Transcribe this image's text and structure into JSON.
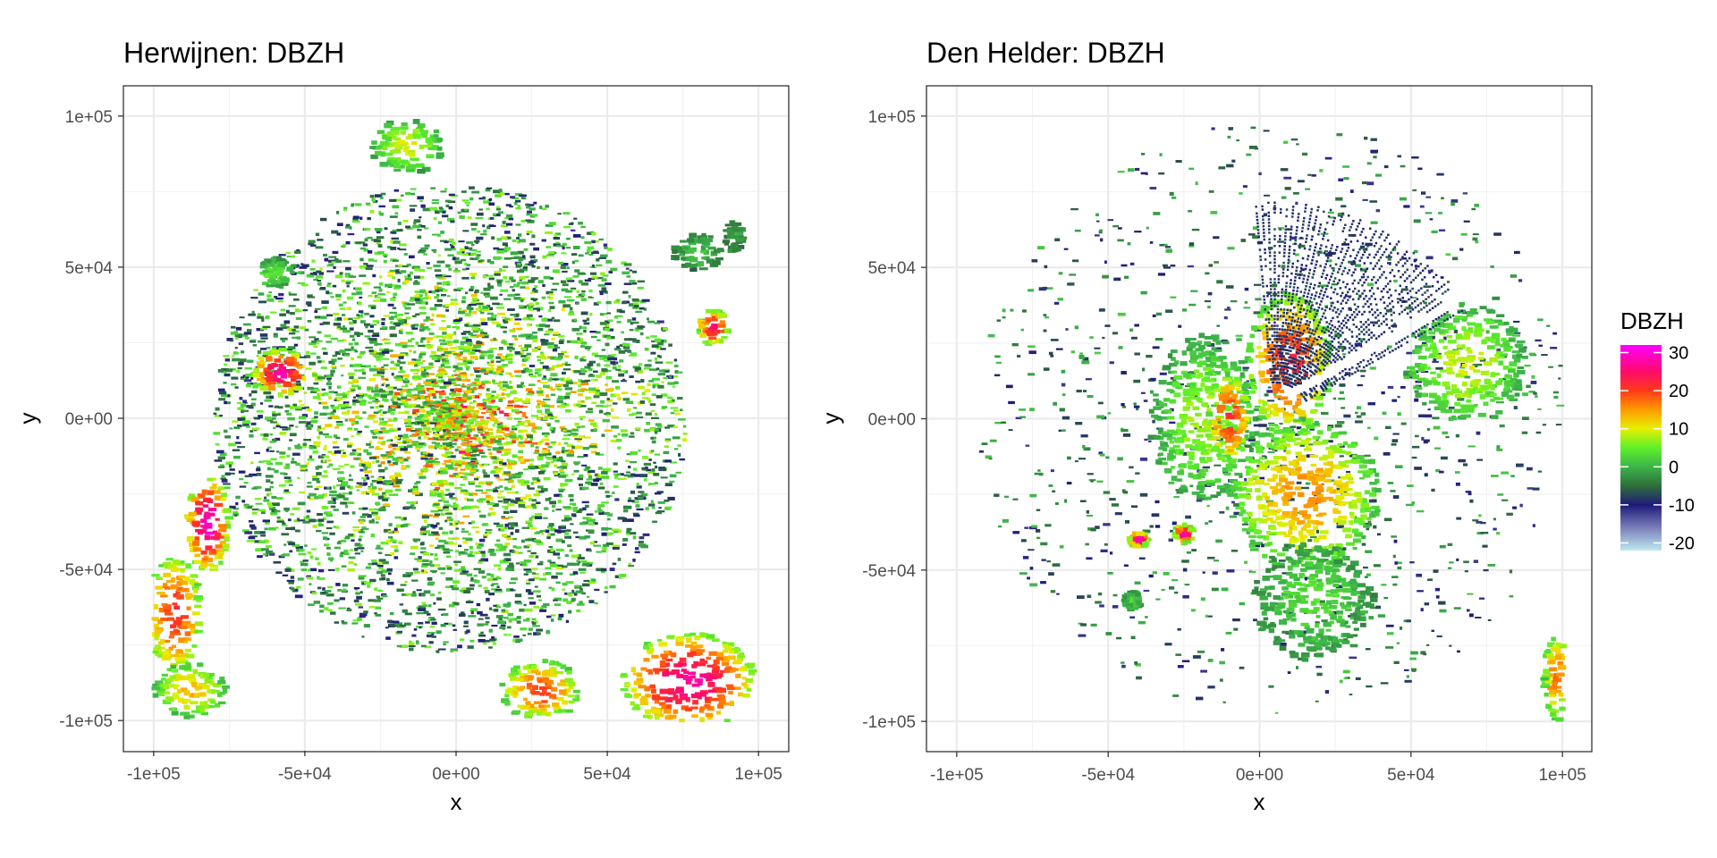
{
  "chart_data": [
    {
      "type": "heatmap",
      "title": "Herwijnen: DBZH",
      "xlabel": "x",
      "ylabel": "y",
      "xlim": [
        -110000,
        110000
      ],
      "ylim": [
        -110000,
        110000
      ],
      "x_ticks": [
        "-1e+05",
        "-5e+04",
        "0e+00",
        "5e+04",
        "1e+05"
      ],
      "y_ticks": [
        "-1e+05",
        "-5e+04",
        "0e+00",
        "5e+04",
        "1e+05"
      ],
      "tick_values": [
        -100000,
        -50000,
        0,
        50000,
        100000
      ],
      "grid": true,
      "clutter_blobs": [
        {
          "x": -58000,
          "y": 15000,
          "rx": 9000,
          "ry": 8000,
          "dbzh": 28
        },
        {
          "x": 85000,
          "y": 30000,
          "rx": 5000,
          "ry": 6000,
          "dbzh": 25
        },
        {
          "x": -60000,
          "y": 48000,
          "rx": 6000,
          "ry": 5000,
          "dbzh": 5
        },
        {
          "x": 80000,
          "y": 55000,
          "rx": 8000,
          "ry": 6000,
          "dbzh": 2
        },
        {
          "x": 92000,
          "y": 60000,
          "rx": 3000,
          "ry": 5000,
          "dbzh": 0
        }
      ],
      "precip_blobs": [
        {
          "x": -82000,
          "y": -35000,
          "rx": 7000,
          "ry": 16000,
          "dbzh": 30
        },
        {
          "x": -93000,
          "y": -65000,
          "rx": 9000,
          "ry": 20000,
          "dbzh": 22
        },
        {
          "x": -88000,
          "y": -90000,
          "rx": 12000,
          "ry": 9000,
          "dbzh": 14
        },
        {
          "x": 28000,
          "y": -90000,
          "rx": 13000,
          "ry": 10000,
          "dbzh": 20
        },
        {
          "x": 77000,
          "y": -87000,
          "rx": 22000,
          "ry": 16000,
          "dbzh": 28
        },
        {
          "x": -16000,
          "y": 90000,
          "rx": 12000,
          "ry": 9000,
          "dbzh": 10
        }
      ],
      "gaps": [
        {
          "from": [
            -12000,
            -15000
          ],
          "to": [
            -35000,
            -55000
          ]
        },
        {
          "from": [
            -8000,
            -18000
          ],
          "to": [
            -25000,
            -70000
          ]
        }
      ]
    },
    {
      "type": "heatmap",
      "title": "Den Helder: DBZH",
      "xlabel": "x",
      "ylabel": "y",
      "xlim": [
        -110000,
        110000
      ],
      "ylim": [
        -110000,
        110000
      ],
      "x_ticks": [
        "-1e+05",
        "-5e+04",
        "0e+00",
        "5e+04",
        "1e+05"
      ],
      "y_ticks": [
        "-1e+05",
        "-5e+04",
        "0e+00",
        "5e+04",
        "1e+05"
      ],
      "tick_values": [
        -100000,
        -50000,
        0,
        50000,
        100000
      ],
      "grid": true,
      "clutter_blobs": [
        {
          "x": -18000,
          "y": 0,
          "rx": 18000,
          "ry": 28000,
          "dbzh": 8
        },
        {
          "x": -10000,
          "y": 0,
          "rx": 7000,
          "ry": 15000,
          "dbzh": 22
        },
        {
          "x": -40000,
          "y": -40000,
          "rx": 3000,
          "ry": 2500,
          "dbzh": 30
        },
        {
          "x": -25000,
          "y": -38000,
          "rx": 3000,
          "ry": 3000,
          "dbzh": 28
        },
        {
          "x": -42000,
          "y": -60000,
          "rx": 3000,
          "ry": 3000,
          "dbzh": 5
        }
      ],
      "precip_blobs": [
        {
          "x": 10000,
          "y": 18000,
          "rx": 14000,
          "ry": 24000,
          "dbzh": 22
        },
        {
          "x": 15000,
          "y": -25000,
          "rx": 25000,
          "ry": 25000,
          "dbzh": 16
        },
        {
          "x": 18000,
          "y": -60000,
          "rx": 20000,
          "ry": 20000,
          "dbzh": 4
        },
        {
          "x": 68000,
          "y": 18000,
          "rx": 20000,
          "ry": 20000,
          "dbzh": 10
        },
        {
          "x": 98000,
          "y": -85000,
          "rx": 4000,
          "ry": 15000,
          "dbzh": 18
        }
      ],
      "rays": {
        "from_angle_deg": 30,
        "to_angle_deg": 95,
        "count": 40,
        "r_min": 12000,
        "r_max": 72000,
        "dbzh": -10
      },
      "gaps": [
        {
          "from": [
            10000,
            8000
          ],
          "to": [
            85000,
            50000
          ]
        }
      ]
    }
  ],
  "legend": {
    "title": "DBZH",
    "ticks": [
      30,
      20,
      10,
      0,
      -10,
      -20
    ],
    "tick_labels": [
      "30",
      "20",
      "10",
      "0",
      "-10",
      "-20"
    ],
    "range": [
      -22,
      32
    ],
    "placement": "right",
    "colors": [
      {
        "v": -22,
        "c": "#bfe8f0"
      },
      {
        "v": -16,
        "c": "#7a7fb8"
      },
      {
        "v": -10,
        "c": "#1f1a7a"
      },
      {
        "v": -5,
        "c": "#2f6f3a"
      },
      {
        "v": 0,
        "c": "#3cb44a"
      },
      {
        "v": 5,
        "c": "#5ef02a"
      },
      {
        "v": 10,
        "c": "#e6f000"
      },
      {
        "v": 15,
        "c": "#ff9a00"
      },
      {
        "v": 20,
        "c": "#ff3a1a"
      },
      {
        "v": 25,
        "c": "#ff0a6a"
      },
      {
        "v": 32,
        "c": "#ff00ff"
      }
    ]
  }
}
